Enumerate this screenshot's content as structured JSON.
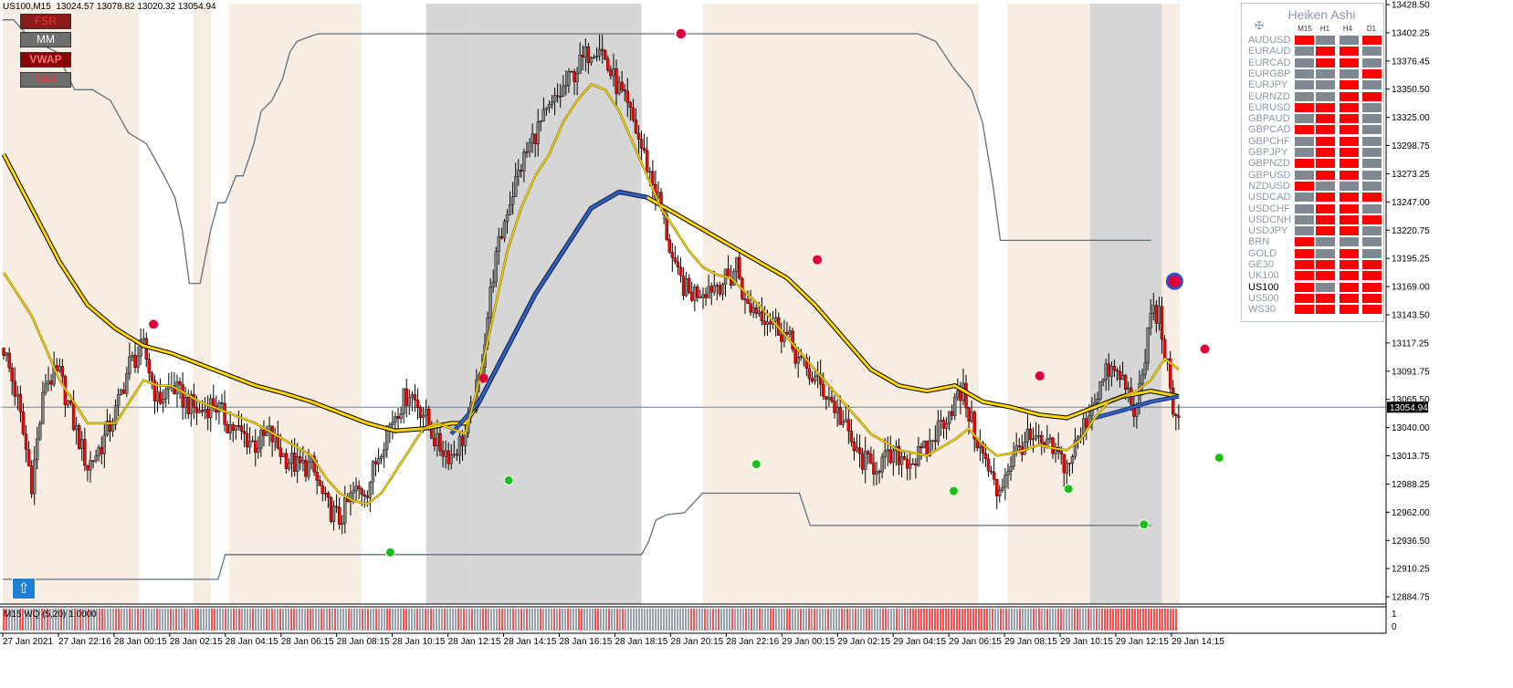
{
  "header": {
    "symbol_text": "US100,M15",
    "ohlc": [
      "13024.57",
      "13078.82",
      "13020.32",
      "13054.94"
    ]
  },
  "buttons": [
    {
      "label": "FSR",
      "bg": "#8b1a1a",
      "fg": "#ff3030"
    },
    {
      "label": "MM",
      "bg": "#6e6e6e",
      "fg": "#ffffff"
    },
    {
      "label": "VWAP",
      "bg": "#8b0000",
      "fg": "#ff7070"
    },
    {
      "label": "TMA",
      "bg": "#6e6e6e",
      "fg": "#ff3030"
    }
  ],
  "current_price_label": "13054.94",
  "sub_indicator_label": "M15 WQ (5,20) 1.0000",
  "sub_axis_labels": [
    "1",
    "0"
  ],
  "heiken_ashi": {
    "title": "Heiken Ashi",
    "columns": [
      "M15",
      "H1",
      "H4",
      "D1"
    ],
    "colors": {
      "up": "#ff0000",
      "down": "#808891"
    },
    "rows": [
      {
        "symbol": "AUDUSD",
        "cells": [
          "up",
          "down",
          "down",
          "up"
        ]
      },
      {
        "symbol": "EURAUD",
        "cells": [
          "down",
          "up",
          "up",
          "down"
        ]
      },
      {
        "symbol": "EURCAD",
        "cells": [
          "down",
          "up",
          "up",
          "down"
        ]
      },
      {
        "symbol": "EURGBP",
        "cells": [
          "down",
          "down",
          "down",
          "up"
        ]
      },
      {
        "symbol": "EURJPY",
        "cells": [
          "down",
          "down",
          "up",
          "down"
        ]
      },
      {
        "symbol": "EURNZD",
        "cells": [
          "down",
          "down",
          "up",
          "up"
        ]
      },
      {
        "symbol": "EURUSD",
        "cells": [
          "up",
          "up",
          "up",
          "down"
        ]
      },
      {
        "symbol": "GBPAUD",
        "cells": [
          "down",
          "up",
          "up",
          "down"
        ]
      },
      {
        "symbol": "GBPCAD",
        "cells": [
          "up",
          "up",
          "up",
          "down"
        ]
      },
      {
        "symbol": "GBPCHF",
        "cells": [
          "down",
          "up",
          "up",
          "down"
        ]
      },
      {
        "symbol": "GBPJPY",
        "cells": [
          "down",
          "up",
          "up",
          "down"
        ]
      },
      {
        "symbol": "GBPNZD",
        "cells": [
          "up",
          "up",
          "up",
          "down"
        ]
      },
      {
        "symbol": "GBPUSD",
        "cells": [
          "down",
          "up",
          "up",
          "down"
        ]
      },
      {
        "symbol": "NZDUSD",
        "cells": [
          "up",
          "down",
          "down",
          "down"
        ]
      },
      {
        "symbol": "USDCAD",
        "cells": [
          "down",
          "up",
          "up",
          "up"
        ]
      },
      {
        "symbol": "USDCHF",
        "cells": [
          "down",
          "up",
          "up",
          "down"
        ]
      },
      {
        "symbol": "USDCNH",
        "cells": [
          "down",
          "up",
          "up",
          "up"
        ]
      },
      {
        "symbol": "USDJPY",
        "cells": [
          "down",
          "up",
          "up",
          "down"
        ]
      },
      {
        "symbol": "BRN",
        "cells": [
          "up",
          "down",
          "down",
          "down"
        ]
      },
      {
        "symbol": "GOLD",
        "cells": [
          "up",
          "down",
          "up",
          "down"
        ]
      },
      {
        "symbol": "GE30",
        "cells": [
          "up",
          "up",
          "up",
          "up"
        ]
      },
      {
        "symbol": "UK100",
        "cells": [
          "up",
          "up",
          "up",
          "up"
        ]
      },
      {
        "symbol": "US100",
        "cells": [
          "up",
          "down",
          "up",
          "up"
        ],
        "active": true
      },
      {
        "symbol": "US500",
        "cells": [
          "up",
          "up",
          "up",
          "up"
        ]
      },
      {
        "symbol": "WS30",
        "cells": [
          "up",
          "up",
          "up",
          "up"
        ]
      }
    ]
  },
  "chart_data": {
    "type": "candlestick",
    "symbol": "US100",
    "timeframe": "M15",
    "ylim": [
      12872,
      13430
    ],
    "y_ticks": [
      "13428.50",
      "13402.25",
      "13376.45",
      "13350.50",
      "13325.00",
      "13298.75",
      "13273.25",
      "13247.00",
      "13220.75",
      "13195.25",
      "13169.00",
      "13143.50",
      "13117.25",
      "13091.75",
      "13065.50",
      "13040.00",
      "13013.75",
      "12988.25",
      "12962.00",
      "12936.50",
      "12910.25",
      "12884.75"
    ],
    "x_labels": [
      "27 Jan 2021",
      "27 Jan 22:16",
      "28 Jan 00:15",
      "28 Jan 02:15",
      "28 Jan 04:15",
      "28 Jan 06:15",
      "28 Jan 08:15",
      "28 Jan 10:15",
      "28 Jan 12:15",
      "28 Jan 14:15",
      "28 Jan 16:15",
      "28 Jan 18:15",
      "28 Jan 20:15",
      "28 Jan 22:16",
      "29 Jan 00:15",
      "29 Jan 02:15",
      "29 Jan 04:15",
      "29 Jan 06:15",
      "29 Jan 08:15",
      "29 Jan 10:15",
      "29 Jan 12:15",
      "29 Jan 14:15"
    ],
    "current_price": 13054.94,
    "colors": {
      "bull": "#808080",
      "bear": "#ff0000",
      "wick": "#000000",
      "slow_ma": "#ffd700",
      "fast_ma": "#3060c0",
      "envelope": "#5f7080",
      "sell_dot": "#e0003c",
      "buy_dot": "#18c018"
    },
    "close_anchors": [
      [
        0,
        13110
      ],
      [
        5,
        13060
      ],
      [
        10,
        12985
      ],
      [
        15,
        13080
      ],
      [
        20,
        13085
      ],
      [
        25,
        13040
      ],
      [
        30,
        13000
      ],
      [
        35,
        13020
      ],
      [
        40,
        13050
      ],
      [
        45,
        13095
      ],
      [
        50,
        13110
      ],
      [
        55,
        13060
      ],
      [
        60,
        13075
      ],
      [
        65,
        13060
      ],
      [
        70,
        13050
      ],
      [
        75,
        13060
      ],
      [
        80,
        13040
      ],
      [
        85,
        13030
      ],
      [
        90,
        13020
      ],
      [
        95,
        13030
      ],
      [
        100,
        13010
      ],
      [
        105,
        13000
      ],
      [
        110,
        13000
      ],
      [
        115,
        12965
      ],
      [
        120,
        12950
      ],
      [
        125,
        12975
      ],
      [
        130,
        12980
      ],
      [
        135,
        13020
      ],
      [
        140,
        13050
      ],
      [
        145,
        13070
      ],
      [
        150,
        13050
      ],
      [
        155,
        13020
      ],
      [
        160,
        13010
      ],
      [
        165,
        13030
      ],
      [
        170,
        13080
      ],
      [
        175,
        13180
      ],
      [
        180,
        13240
      ],
      [
        185,
        13280
      ],
      [
        190,
        13310
      ],
      [
        195,
        13330
      ],
      [
        200,
        13350
      ],
      [
        205,
        13370
      ],
      [
        210,
        13388
      ],
      [
        213,
        13393
      ],
      [
        216,
        13370
      ],
      [
        220,
        13350
      ],
      [
        225,
        13320
      ],
      [
        230,
        13280
      ],
      [
        235,
        13240
      ],
      [
        240,
        13180
      ],
      [
        245,
        13160
      ],
      [
        250,
        13165
      ],
      [
        255,
        13170
      ],
      [
        260,
        13175
      ],
      [
        262,
        13190
      ],
      [
        265,
        13150
      ],
      [
        270,
        13145
      ],
      [
        275,
        13135
      ],
      [
        280,
        13120
      ],
      [
        285,
        13095
      ],
      [
        290,
        13080
      ],
      [
        295,
        13065
      ],
      [
        300,
        13040
      ],
      [
        305,
        13010
      ],
      [
        310,
        13000
      ],
      [
        315,
        13005
      ],
      [
        320,
        13010
      ],
      [
        325,
        13005
      ],
      [
        330,
        13015
      ],
      [
        335,
        13040
      ],
      [
        340,
        13060
      ],
      [
        343,
        13068
      ],
      [
        346,
        13040
      ],
      [
        350,
        13010
      ],
      [
        355,
        12975
      ],
      [
        360,
        13005
      ],
      [
        365,
        13025
      ],
      [
        370,
        13020
      ],
      [
        375,
        13015
      ],
      [
        380,
        13000
      ],
      [
        385,
        13030
      ],
      [
        390,
        13065
      ],
      [
        395,
        13090
      ],
      [
        400,
        13080
      ],
      [
        405,
        13050
      ],
      [
        408,
        13100
      ],
      [
        410,
        13145
      ],
      [
        413,
        13140
      ],
      [
        416,
        13090
      ],
      [
        418,
        13040
      ],
      [
        420,
        13055
      ]
    ],
    "slow_ma_anchors": [
      [
        0,
        13290
      ],
      [
        10,
        13240
      ],
      [
        20,
        13190
      ],
      [
        30,
        13150
      ],
      [
        40,
        13128
      ],
      [
        50,
        13112
      ],
      [
        60,
        13105
      ],
      [
        70,
        13095
      ],
      [
        80,
        13085
      ],
      [
        90,
        13075
      ],
      [
        100,
        13068
      ],
      [
        110,
        13060
      ],
      [
        120,
        13050
      ],
      [
        130,
        13040
      ],
      [
        140,
        13033
      ],
      [
        150,
        13035
      ],
      [
        160,
        13040
      ],
      [
        165,
        13040
      ],
      [
        170,
        13060
      ],
      [
        180,
        13110
      ],
      [
        190,
        13160
      ],
      [
        200,
        13200
      ],
      [
        210,
        13240
      ],
      [
        220,
        13255
      ],
      [
        230,
        13250
      ],
      [
        240,
        13235
      ],
      [
        250,
        13220
      ],
      [
        260,
        13205
      ],
      [
        270,
        13190
      ],
      [
        280,
        13175
      ],
      [
        290,
        13150
      ],
      [
        300,
        13120
      ],
      [
        310,
        13090
      ],
      [
        320,
        13075
      ],
      [
        330,
        13070
      ],
      [
        340,
        13075
      ],
      [
        350,
        13060
      ],
      [
        360,
        13055
      ],
      [
        370,
        13048
      ],
      [
        380,
        13045
      ],
      [
        390,
        13055
      ],
      [
        400,
        13065
      ],
      [
        410,
        13070
      ],
      [
        420,
        13065
      ]
    ],
    "fast_ma_anchors": [
      [
        0,
        13180
      ],
      [
        10,
        13140
      ],
      [
        20,
        13080
      ],
      [
        30,
        13040
      ],
      [
        40,
        13040
      ],
      [
        45,
        13060
      ],
      [
        50,
        13080
      ],
      [
        55,
        13075
      ],
      [
        60,
        13075
      ],
      [
        70,
        13060
      ],
      [
        80,
        13050
      ],
      [
        90,
        13040
      ],
      [
        100,
        13025
      ],
      [
        110,
        13010
      ],
      [
        115,
        12990
      ],
      [
        120,
        12975
      ],
      [
        125,
        12968
      ],
      [
        130,
        12965
      ],
      [
        135,
        12975
      ],
      [
        140,
        12995
      ],
      [
        145,
        13015
      ],
      [
        150,
        13035
      ],
      [
        155,
        13040
      ],
      [
        160,
        13035
      ],
      [
        165,
        13030
      ],
      [
        170,
        13080
      ],
      [
        175,
        13140
      ],
      [
        180,
        13200
      ],
      [
        185,
        13240
      ],
      [
        190,
        13270
      ],
      [
        195,
        13290
      ],
      [
        200,
        13320
      ],
      [
        205,
        13340
      ],
      [
        210,
        13355
      ],
      [
        215,
        13350
      ],
      [
        220,
        13330
      ],
      [
        225,
        13300
      ],
      [
        230,
        13270
      ],
      [
        235,
        13240
      ],
      [
        240,
        13220
      ],
      [
        245,
        13200
      ],
      [
        250,
        13185
      ],
      [
        255,
        13178
      ],
      [
        260,
        13175
      ],
      [
        265,
        13162
      ],
      [
        270,
        13150
      ],
      [
        280,
        13120
      ],
      [
        290,
        13090
      ],
      [
        300,
        13060
      ],
      [
        310,
        13030
      ],
      [
        320,
        13015
      ],
      [
        330,
        13010
      ],
      [
        340,
        13025
      ],
      [
        345,
        13035
      ],
      [
        350,
        13020
      ],
      [
        355,
        13010
      ],
      [
        360,
        13012
      ],
      [
        365,
        13015
      ],
      [
        370,
        13020
      ],
      [
        375,
        13017
      ],
      [
        380,
        13015
      ],
      [
        385,
        13025
      ],
      [
        390,
        13045
      ],
      [
        395,
        13060
      ],
      [
        400,
        13065
      ],
      [
        405,
        13070
      ],
      [
        410,
        13080
      ],
      [
        415,
        13100
      ],
      [
        420,
        13090
      ]
    ],
    "slow_blue_anchors": [
      [
        160,
        13030
      ],
      [
        170,
        13060
      ],
      [
        180,
        13110
      ],
      [
        190,
        13160
      ],
      [
        200,
        13200
      ],
      [
        210,
        13240
      ],
      [
        220,
        13255
      ],
      [
        230,
        13250
      ],
      [
        390,
        13045
      ],
      [
        400,
        13052
      ],
      [
        410,
        13060
      ],
      [
        420,
        13065
      ]
    ],
    "envelope_upper": [
      [
        0,
        13415
      ],
      [
        3,
        13415
      ],
      [
        7,
        13400
      ],
      [
        12,
        13390
      ],
      [
        15,
        13385
      ],
      [
        20,
        13350
      ],
      [
        25,
        13350
      ],
      [
        30,
        13340
      ],
      [
        35,
        13310
      ],
      [
        40,
        13300
      ],
      [
        45,
        13270
      ],
      [
        48,
        13250
      ],
      [
        50,
        13220
      ],
      [
        52,
        13170
      ],
      [
        55,
        13170
      ],
      [
        58,
        13220
      ],
      [
        60,
        13245
      ],
      [
        62,
        13245
      ],
      [
        65,
        13270
      ],
      [
        67,
        13270
      ],
      [
        70,
        13300
      ],
      [
        72,
        13330
      ],
      [
        75,
        13340
      ],
      [
        78,
        13360
      ],
      [
        80,
        13385
      ],
      [
        82,
        13395
      ],
      [
        86,
        13400
      ],
      [
        88,
        13402
      ],
      [
        200,
        13402
      ],
      [
        255,
        13402
      ],
      [
        260,
        13395
      ],
      [
        265,
        13370
      ],
      [
        270,
        13350
      ],
      [
        273,
        13320
      ],
      [
        276,
        13260
      ],
      [
        278,
        13210
      ],
      [
        320,
        13210
      ]
    ],
    "envelope_lower": [
      [
        0,
        12895
      ],
      [
        60,
        12895
      ],
      [
        62,
        12918
      ],
      [
        120,
        12918
      ],
      [
        178,
        12918
      ],
      [
        180,
        12930
      ],
      [
        182,
        12950
      ],
      [
        185,
        12955
      ],
      [
        190,
        12957
      ],
      [
        195,
        12975
      ],
      [
        210,
        12975
      ],
      [
        222,
        12975
      ],
      [
        225,
        12945
      ],
      [
        260,
        12945
      ],
      [
        300,
        12945
      ],
      [
        320,
        12945
      ]
    ],
    "sell_signals": [
      [
        42,
        13132
      ],
      [
        134,
        13082
      ],
      [
        189,
        13402
      ],
      [
        227,
        13192
      ],
      [
        289,
        13084
      ],
      [
        335,
        13109
      ],
      [
        347,
        13172
      ]
    ],
    "buy_signals": [
      [
        108,
        12920
      ],
      [
        141,
        12987
      ],
      [
        210,
        13002
      ],
      [
        265,
        12977
      ],
      [
        297,
        12979
      ],
      [
        318,
        12946
      ],
      [
        339,
        13008
      ]
    ],
    "session_shading": [
      [
        0,
        38,
        "#f8ede3"
      ],
      [
        38,
        53,
        "#ffffff"
      ],
      [
        53,
        58,
        "#f8ede3"
      ],
      [
        58,
        63,
        "#ffffff"
      ],
      [
        63,
        100,
        "#f8ede3"
      ],
      [
        100,
        118,
        "#ffffff"
      ],
      [
        118,
        130,
        "#d6d6d6"
      ],
      [
        130,
        178,
        "#d6d6d6"
      ],
      [
        178,
        195,
        "#ffffff"
      ],
      [
        195,
        272,
        "#f8ede3"
      ],
      [
        272,
        280,
        "#ffffff"
      ],
      [
        280,
        303,
        "#f8ede3"
      ],
      [
        303,
        323,
        "#d6d6d6"
      ],
      [
        323,
        328,
        "#f8ede3"
      ]
    ]
  }
}
